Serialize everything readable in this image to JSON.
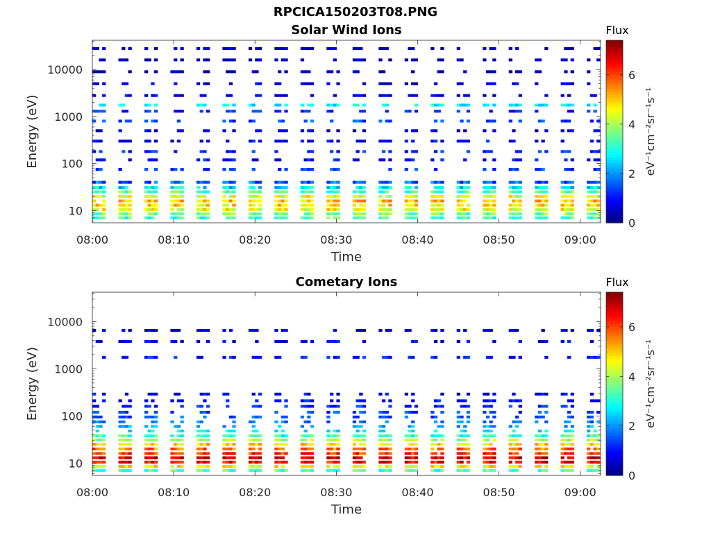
{
  "figure_title": "RPCICA150203T08.PNG",
  "colormap": "jet",
  "chart_data": [
    {
      "type": "heatmap",
      "title": "Solar Wind Ions",
      "xlabel": "Time",
      "ylabel": "Energy (eV)",
      "x_tick_labels": [
        "08:00",
        "08:10",
        "08:20",
        "08:30",
        "08:40",
        "08:50",
        "09:00"
      ],
      "x_ticks_min": [
        0,
        10,
        20,
        30,
        40,
        50,
        60
      ],
      "xlim_min": [
        0,
        62.5
      ],
      "y_scale": "log",
      "y_tick_labels": [
        "10",
        "100",
        "1000",
        "10000"
      ],
      "y_ticks": [
        10,
        100,
        1000,
        10000
      ],
      "ylim": [
        5.5,
        42000
      ],
      "colorbar": {
        "label": "Flux",
        "unit": "eV⁻¹cm⁻²sr⁻¹s⁻¹",
        "range": [
          0,
          7.4
        ],
        "ticks": [
          0,
          2,
          4,
          6
        ]
      },
      "sweep_start_minutes": [
        0,
        3.2,
        6.4,
        9.6,
        12.8,
        16,
        19.2,
        22.4,
        25.6,
        28.8,
        32,
        35.2,
        38.4,
        41.6,
        44.8,
        48,
        51.2,
        54.4,
        57.6,
        60.8
      ],
      "sweep_duration_minutes": 1.6,
      "energy_bands_eV": [
        {
          "e": 7,
          "flux": 3.3
        },
        {
          "e": 8.5,
          "flux": 3.6
        },
        {
          "e": 10.5,
          "flux": 4.5
        },
        {
          "e": 13,
          "flux": 4.8
        },
        {
          "e": 16,
          "flux": 5.0
        },
        {
          "e": 20,
          "flux": 4.4
        },
        {
          "e": 25,
          "flux": 3.4
        },
        {
          "e": 31,
          "flux": 2.6
        },
        {
          "e": 40,
          "flux": 1.6
        },
        {
          "e": 75,
          "flux": 1.4
        },
        {
          "e": 120,
          "flux": 1.0
        },
        {
          "e": 180,
          "flux": 1.2
        },
        {
          "e": 300,
          "flux": 0.9
        },
        {
          "e": 500,
          "flux": 0.7
        },
        {
          "e": 800,
          "flux": 1.5
        },
        {
          "e": 1300,
          "flux": 1.2
        },
        {
          "e": 1750,
          "flux": 2.7
        },
        {
          "e": 2800,
          "flux": 0.7
        },
        {
          "e": 5000,
          "flux": 0.6
        },
        {
          "e": 9000,
          "flux": 0.4
        },
        {
          "e": 16000,
          "flux": 0.4
        },
        {
          "e": 28000,
          "flux": 0.4
        }
      ]
    },
    {
      "type": "heatmap",
      "title": "Cometary Ions",
      "xlabel": "Time",
      "ylabel": "Energy (eV)",
      "x_tick_labels": [
        "08:00",
        "08:10",
        "08:20",
        "08:30",
        "08:40",
        "08:50",
        "09:00"
      ],
      "x_ticks_min": [
        0,
        10,
        20,
        30,
        40,
        50,
        60
      ],
      "xlim_min": [
        0,
        62.5
      ],
      "y_scale": "log",
      "y_tick_labels": [
        "10",
        "100",
        "1000",
        "10000"
      ],
      "y_ticks": [
        10,
        100,
        1000,
        10000
      ],
      "ylim": [
        5.5,
        42000
      ],
      "colorbar": {
        "label": "Flux",
        "unit": "eV⁻¹cm⁻²sr⁻¹s⁻¹",
        "range": [
          0,
          7.4
        ],
        "ticks": [
          0,
          2,
          4,
          6
        ]
      },
      "sweep_start_minutes": [
        0,
        3.2,
        6.4,
        9.6,
        12.8,
        16,
        19.2,
        22.4,
        25.6,
        28.8,
        32,
        35.2,
        38.4,
        41.6,
        44.8,
        48,
        51.2,
        54.4,
        57.6,
        60.8
      ],
      "sweep_duration_minutes": 1.6,
      "energy_bands_eV": [
        {
          "e": 7,
          "flux": 3.4
        },
        {
          "e": 8.5,
          "flux": 4.6
        },
        {
          "e": 10.5,
          "flux": 6.5
        },
        {
          "e": 13,
          "flux": 6.9
        },
        {
          "e": 16,
          "flux": 6.2
        },
        {
          "e": 20,
          "flux": 5.6
        },
        {
          "e": 25,
          "flux": 4.8
        },
        {
          "e": 31,
          "flux": 3.9
        },
        {
          "e": 38,
          "flux": 3.2
        },
        {
          "e": 48,
          "flux": 2.6
        },
        {
          "e": 60,
          "flux": 2.2
        },
        {
          "e": 75,
          "flux": 1.8
        },
        {
          "e": 95,
          "flux": 1.5
        },
        {
          "e": 120,
          "flux": 1.4
        },
        {
          "e": 160,
          "flux": 1.2
        },
        {
          "e": 210,
          "flux": 0.9
        },
        {
          "e": 290,
          "flux": 0.8
        },
        {
          "e": 1750,
          "flux": 1.1
        },
        {
          "e": 3800,
          "flux": 0.8
        },
        {
          "e": 6500,
          "flux": 0.6
        }
      ]
    }
  ]
}
